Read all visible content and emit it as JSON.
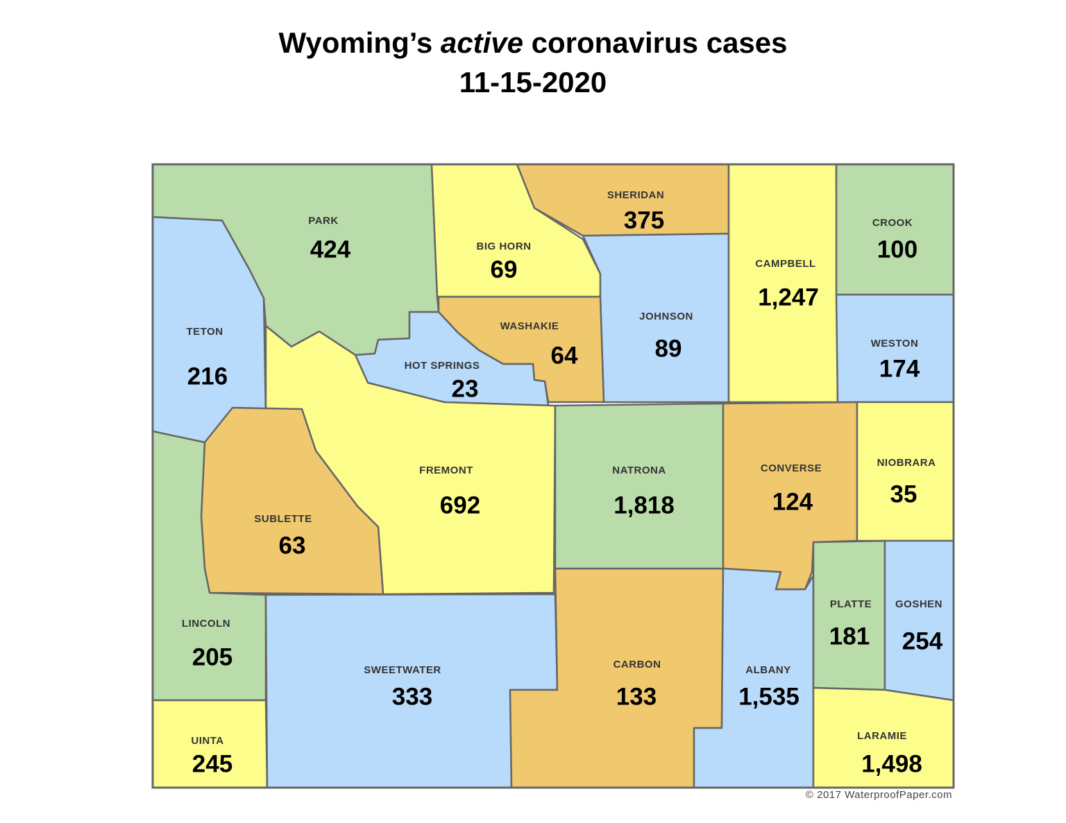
{
  "header": {
    "title": {
      "before": "Wyoming’s ",
      "emphasis": "active",
      "after": " coronavirus cases"
    },
    "date": "11-15-2020"
  },
  "counties": [
    {
      "name": "PARK",
      "cases": "424"
    },
    {
      "name": "TETON",
      "cases": "216"
    },
    {
      "name": "BIG HORN",
      "cases": "69"
    },
    {
      "name": "SHERIDAN",
      "cases": "375"
    },
    {
      "name": "JOHNSON",
      "cases": "89"
    },
    {
      "name": "WASHAKIE",
      "cases": "64"
    },
    {
      "name": "HOT SPRINGS",
      "cases": "23"
    },
    {
      "name": "FREMONT",
      "cases": "692"
    },
    {
      "name": "SUBLETTE",
      "cases": "63"
    },
    {
      "name": "LINCOLN",
      "cases": "205"
    },
    {
      "name": "UINTA",
      "cases": "245"
    },
    {
      "name": "SWEETWATER",
      "cases": "333"
    },
    {
      "name": "CARBON",
      "cases": "133"
    },
    {
      "name": "NATRONA",
      "cases": "1,818"
    },
    {
      "name": "CAMPBELL",
      "cases": "1,247"
    },
    {
      "name": "CROOK",
      "cases": "100"
    },
    {
      "name": "WESTON",
      "cases": "174"
    },
    {
      "name": "CONVERSE",
      "cases": "124"
    },
    {
      "name": "NIOBRARA",
      "cases": "35"
    },
    {
      "name": "ALBANY",
      "cases": "1,535"
    },
    {
      "name": "PLATTE",
      "cases": "181"
    },
    {
      "name": "GOSHEN",
      "cases": "254"
    },
    {
      "name": "LARAMIE",
      "cases": "1,498"
    }
  ],
  "credit": "© 2017 WaterproofPaper.com"
}
